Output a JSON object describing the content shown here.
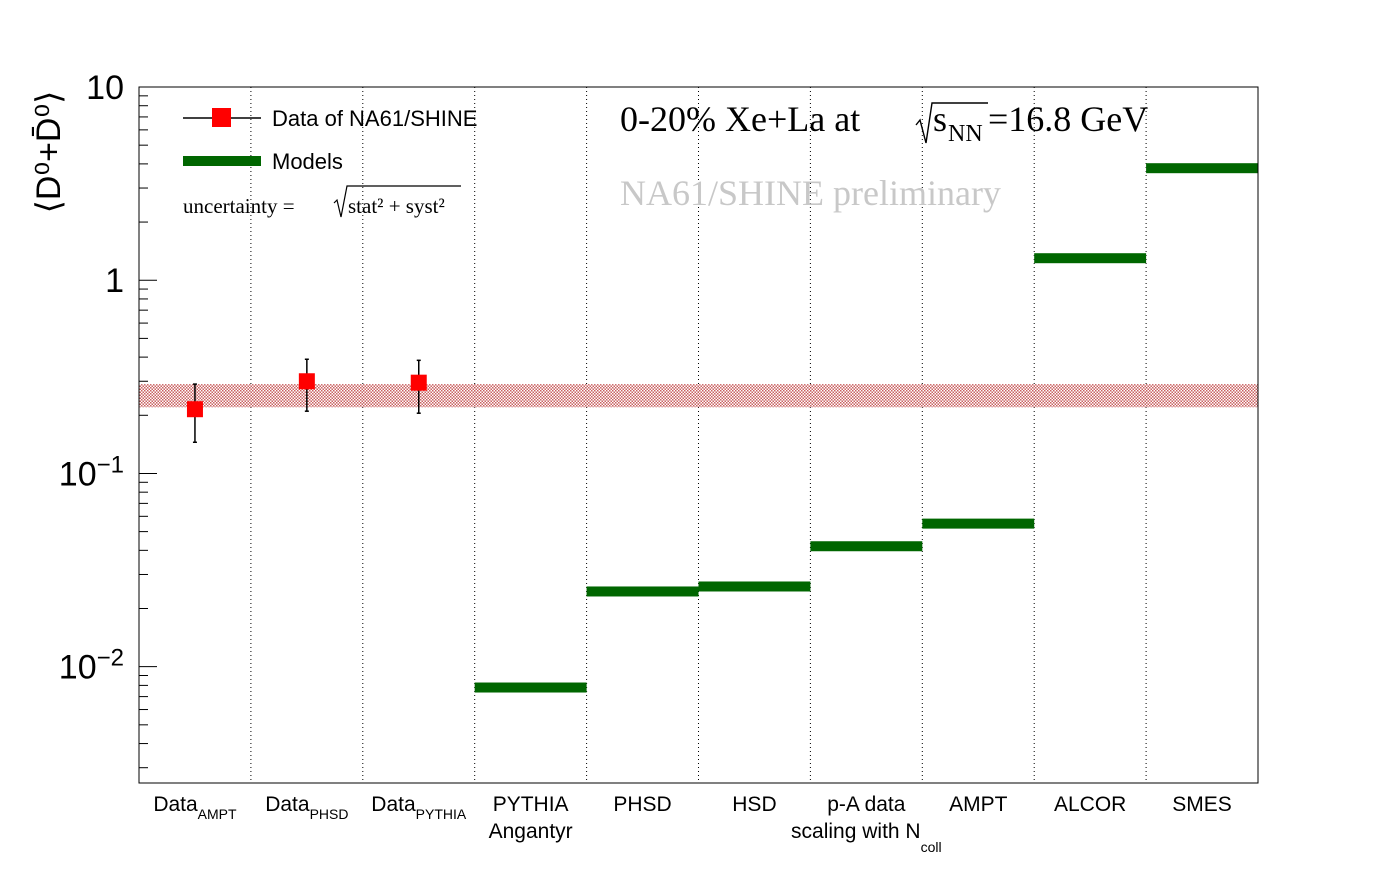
{
  "chart_data": {
    "type": "scatter",
    "ylabel": "⟨D⁰+D̄⁰⟩",
    "yscale": "log",
    "ylim": [
      0.0025,
      10
    ],
    "ytick_labels": [
      {
        "value": 10,
        "base": "10",
        "exp": ""
      },
      {
        "value": 1,
        "base": "1",
        "exp": ""
      },
      {
        "value": 0.1,
        "base": "10",
        "exp": "−1"
      },
      {
        "value": 0.01,
        "base": "10",
        "exp": "−2"
      }
    ],
    "categories": [
      {
        "main": "Data",
        "sub": "AMPT"
      },
      {
        "main": "Data",
        "sub": "PHSD"
      },
      {
        "main": "Data",
        "sub": "PYTHIA"
      },
      {
        "main": "PYTHIA",
        "line2": "Angantyr"
      },
      {
        "main": "PHSD"
      },
      {
        "main": "HSD"
      },
      {
        "main": "p-A data",
        "line2": "scaling with N",
        "line2_sub": "coll"
      },
      {
        "main": "AMPT"
      },
      {
        "main": "ALCOR"
      },
      {
        "main": "SMES"
      }
    ],
    "series": [
      {
        "name": "Data of NA61/SHINE",
        "color": "#ff0000",
        "marker": "square",
        "points": [
          {
            "category_index": 0,
            "y": 0.215,
            "err_low": 0.145,
            "err_high": 0.29
          },
          {
            "category_index": 1,
            "y": 0.3,
            "err_low": 0.21,
            "err_high": 0.39
          },
          {
            "category_index": 2,
            "y": 0.295,
            "err_low": 0.205,
            "err_high": 0.385
          }
        ]
      },
      {
        "name": "Models",
        "color": "#006600",
        "marker": "hbar",
        "points": [
          {
            "category_index": 3,
            "y": 0.0078
          },
          {
            "category_index": 4,
            "y": 0.0245
          },
          {
            "category_index": 5,
            "y": 0.026
          },
          {
            "category_index": 6,
            "y": 0.042
          },
          {
            "category_index": 7,
            "y": 0.055
          },
          {
            "category_index": 8,
            "y": 1.3
          },
          {
            "category_index": 9,
            "y": 3.8
          }
        ]
      }
    ],
    "band": {
      "low": 0.22,
      "high": 0.29,
      "color": "#cc6666"
    },
    "grid": "vertical dotted separators between categories",
    "legend_placement": "top-left",
    "legend_uncertainty_prefix": "uncertainty = ",
    "legend_uncertainty_sqrt": "stat² + syst²",
    "annotation": {
      "prefix": "0-20% Xe+La at ",
      "sqrt_s": "s",
      "sqrt_sub": "NN",
      "suffix": "=16.8 GeV"
    },
    "watermark": "NA61/SHINE preliminary"
  }
}
